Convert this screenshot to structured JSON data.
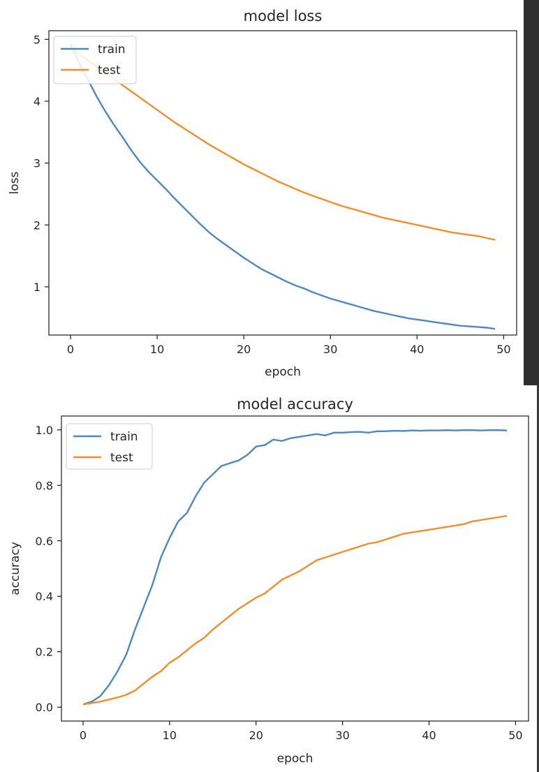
{
  "chart_data": [
    {
      "type": "line",
      "title": "model loss",
      "xlabel": "epoch",
      "ylabel": "loss",
      "xlim": [
        -2.5,
        51.5
      ],
      "ylim": [
        0.22,
        5.14
      ],
      "xticks": [
        0,
        10,
        20,
        30,
        40,
        50
      ],
      "yticks": [
        1,
        2,
        3,
        4,
        5
      ],
      "legend": "top-left",
      "grid": false,
      "x": [
        0,
        1,
        2,
        3,
        4,
        5,
        6,
        7,
        8,
        9,
        10,
        11,
        12,
        13,
        14,
        15,
        16,
        17,
        18,
        19,
        20,
        21,
        22,
        23,
        24,
        25,
        26,
        27,
        28,
        29,
        30,
        31,
        32,
        33,
        34,
        35,
        36,
        37,
        38,
        39,
        40,
        41,
        42,
        43,
        44,
        45,
        46,
        47,
        48,
        49
      ],
      "series": [
        {
          "name": "train",
          "color": "#4c88c4",
          "values": [
            4.92,
            4.62,
            4.35,
            4.08,
            3.84,
            3.62,
            3.42,
            3.21,
            3.02,
            2.86,
            2.72,
            2.58,
            2.43,
            2.29,
            2.15,
            2.01,
            1.88,
            1.77,
            1.67,
            1.57,
            1.47,
            1.38,
            1.29,
            1.22,
            1.15,
            1.08,
            1.02,
            0.97,
            0.91,
            0.86,
            0.81,
            0.77,
            0.73,
            0.69,
            0.65,
            0.61,
            0.58,
            0.55,
            0.52,
            0.49,
            0.47,
            0.45,
            0.43,
            0.41,
            0.39,
            0.37,
            0.36,
            0.35,
            0.34,
            0.32
          ]
        },
        {
          "name": "test",
          "color": "#f28e2b",
          "values": [
            4.86,
            4.76,
            4.66,
            4.56,
            4.46,
            4.36,
            4.26,
            4.16,
            4.06,
            3.96,
            3.86,
            3.76,
            3.66,
            3.57,
            3.48,
            3.39,
            3.3,
            3.22,
            3.14,
            3.06,
            2.98,
            2.91,
            2.84,
            2.77,
            2.7,
            2.64,
            2.58,
            2.52,
            2.47,
            2.42,
            2.37,
            2.32,
            2.28,
            2.24,
            2.2,
            2.16,
            2.12,
            2.09,
            2.06,
            2.03,
            2.0,
            1.97,
            1.94,
            1.91,
            1.88,
            1.86,
            1.84,
            1.82,
            1.79,
            1.76
          ]
        }
      ]
    },
    {
      "type": "line",
      "title": "model accuracy",
      "xlabel": "epoch",
      "ylabel": "accuracy",
      "xlim": [
        -2.5,
        51.5
      ],
      "ylim": [
        -0.05,
        1.05
      ],
      "xticks": [
        0,
        10,
        20,
        30,
        40,
        50
      ],
      "yticks": [
        0.0,
        0.2,
        0.4,
        0.6,
        0.8,
        1.0
      ],
      "legend": "top-left",
      "grid": false,
      "x": [
        0,
        1,
        2,
        3,
        4,
        5,
        6,
        7,
        8,
        9,
        10,
        11,
        12,
        13,
        14,
        15,
        16,
        17,
        18,
        19,
        20,
        21,
        22,
        23,
        24,
        25,
        26,
        27,
        28,
        29,
        30,
        31,
        32,
        33,
        34,
        35,
        36,
        37,
        38,
        39,
        40,
        41,
        42,
        43,
        44,
        45,
        46,
        47,
        48,
        49
      ],
      "series": [
        {
          "name": "train",
          "color": "#4c88c4",
          "values": [
            0.01,
            0.02,
            0.04,
            0.08,
            0.13,
            0.19,
            0.28,
            0.36,
            0.44,
            0.54,
            0.61,
            0.67,
            0.7,
            0.76,
            0.81,
            0.84,
            0.87,
            0.88,
            0.89,
            0.91,
            0.94,
            0.945,
            0.965,
            0.96,
            0.97,
            0.975,
            0.98,
            0.985,
            0.98,
            0.99,
            0.99,
            0.992,
            0.993,
            0.99,
            0.995,
            0.995,
            0.997,
            0.996,
            0.998,
            0.997,
            0.998,
            0.998,
            0.999,
            0.998,
            0.999,
            0.999,
            0.998,
            0.999,
            0.999,
            0.998
          ]
        },
        {
          "name": "test",
          "color": "#f28e2b",
          "values": [
            0.01,
            0.015,
            0.02,
            0.028,
            0.035,
            0.045,
            0.06,
            0.085,
            0.11,
            0.13,
            0.16,
            0.18,
            0.205,
            0.23,
            0.25,
            0.28,
            0.305,
            0.33,
            0.355,
            0.375,
            0.395,
            0.41,
            0.435,
            0.46,
            0.475,
            0.49,
            0.51,
            0.53,
            0.54,
            0.55,
            0.56,
            0.57,
            0.58,
            0.59,
            0.595,
            0.605,
            0.615,
            0.625,
            0.63,
            0.635,
            0.64,
            0.645,
            0.65,
            0.655,
            0.66,
            0.67,
            0.675,
            0.68,
            0.685,
            0.69
          ]
        }
      ]
    }
  ]
}
